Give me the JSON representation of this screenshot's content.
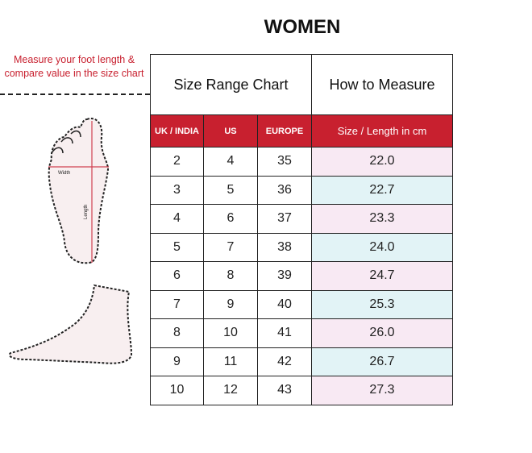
{
  "title": "WOMEN",
  "note": "Measure your foot length & compare value in the size chart",
  "foot_labels": {
    "width": "Width",
    "length": "Length"
  },
  "table": {
    "group_headers": [
      "Size Range Chart",
      "How to Measure"
    ],
    "columns": [
      "UK / INDIA",
      "US",
      "EUROPE",
      "Size / Length in cm"
    ],
    "rows": [
      [
        "2",
        "4",
        "35",
        "22.0"
      ],
      [
        "3",
        "5",
        "36",
        "22.7"
      ],
      [
        "4",
        "6",
        "37",
        "23.3"
      ],
      [
        "5",
        "7",
        "38",
        "24.0"
      ],
      [
        "6",
        "8",
        "39",
        "24.7"
      ],
      [
        "7",
        "9",
        "40",
        "25.3"
      ],
      [
        "8",
        "10",
        "41",
        "26.0"
      ],
      [
        "9",
        "11",
        "42",
        "26.7"
      ],
      [
        "10",
        "12",
        "43",
        "27.3"
      ]
    ]
  },
  "colors": {
    "accent": "#c8202f",
    "row_pink": "#f8e9f3",
    "row_blue": "#e2f3f6"
  }
}
